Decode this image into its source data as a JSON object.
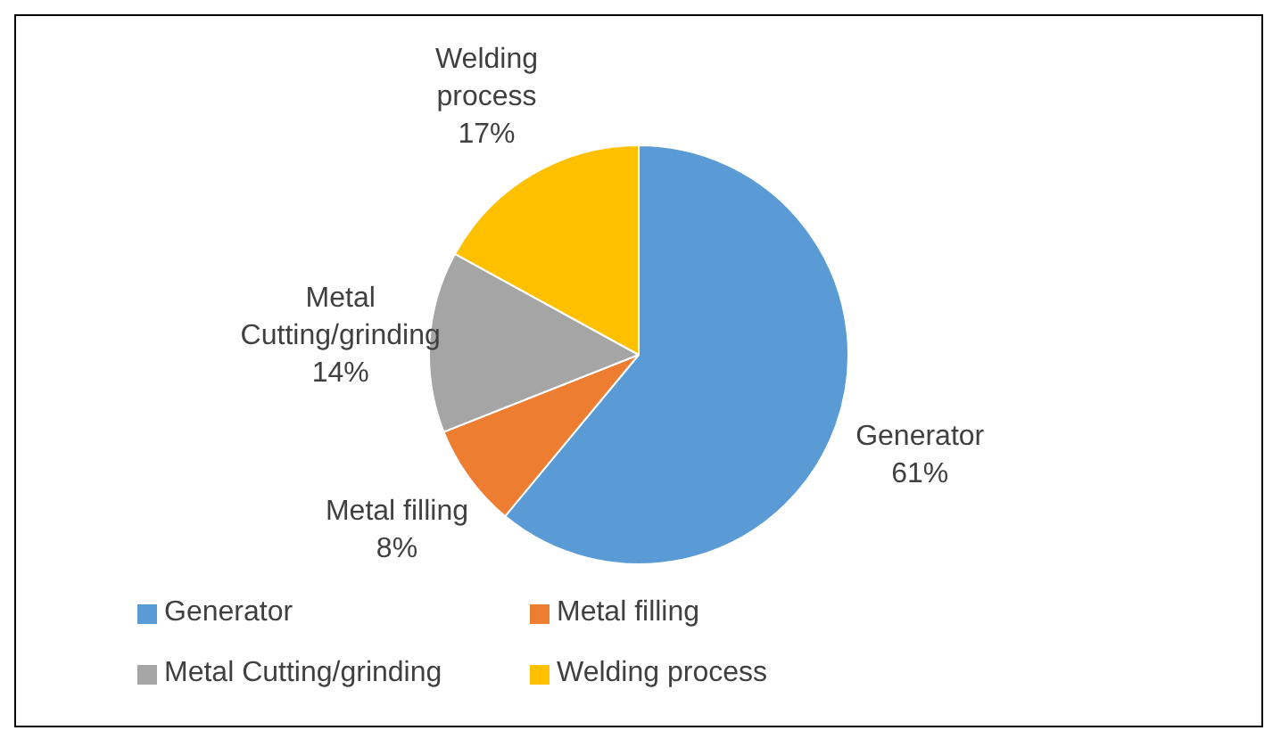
{
  "chart_data": {
    "type": "pie",
    "categories": [
      "Generator",
      "Metal filling",
      "Metal Cutting/grinding",
      "Welding process"
    ],
    "values": [
      61,
      8,
      14,
      17
    ],
    "colors": [
      "#5b9bd5",
      "#ed7d31",
      "#a5a5a5",
      "#ffc000"
    ],
    "value_labels": [
      "61%",
      "8%",
      "14%",
      "17%"
    ],
    "legend": "bottom"
  }
}
